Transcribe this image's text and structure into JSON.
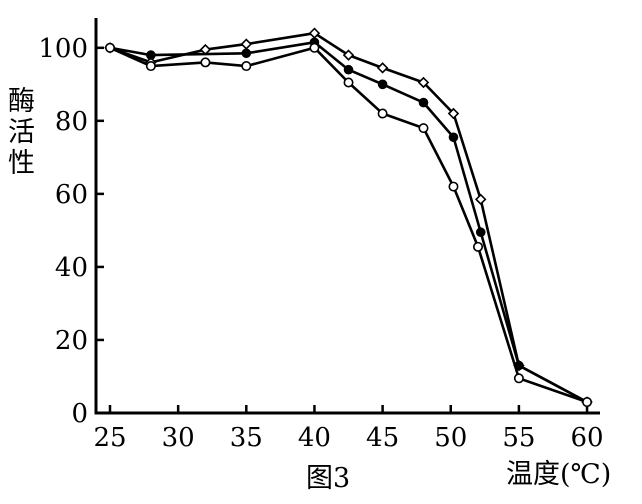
{
  "chart_data": {
    "type": "line",
    "title": "",
    "caption": "图3",
    "xlabel": "温度(℃)",
    "ylabel": "酶活性",
    "xlim": [
      24,
      61
    ],
    "ylim": [
      0,
      108
    ],
    "x_ticks": [
      25,
      30,
      35,
      40,
      45,
      50,
      55,
      60
    ],
    "y_ticks": [
      0,
      20,
      40,
      60,
      80,
      100
    ],
    "grid": false,
    "series": [
      {
        "marker": "diamond-open",
        "x": [
          25,
          28,
          32,
          35,
          40,
          42.5,
          45,
          48,
          50.2,
          52.2,
          55,
          60
        ],
        "y": [
          100,
          96,
          99.5,
          101,
          104,
          98,
          94.5,
          90.5,
          82,
          58.5,
          13,
          3
        ]
      },
      {
        "marker": "circle-filled",
        "x": [
          25,
          28,
          35,
          40,
          42.5,
          45,
          48,
          50.2,
          52.2,
          55,
          60
        ],
        "y": [
          100,
          98,
          98.5,
          101.5,
          94,
          90,
          85,
          75.5,
          49.5,
          13,
          3
        ]
      },
      {
        "marker": "circle-open",
        "x": [
          25,
          28,
          32,
          35,
          40,
          42.5,
          45,
          48,
          50.2,
          52,
          55,
          60
        ],
        "y": [
          100,
          95,
          96,
          95,
          100,
          90.5,
          82,
          78,
          62,
          45.5,
          9.5,
          3
        ]
      }
    ]
  }
}
